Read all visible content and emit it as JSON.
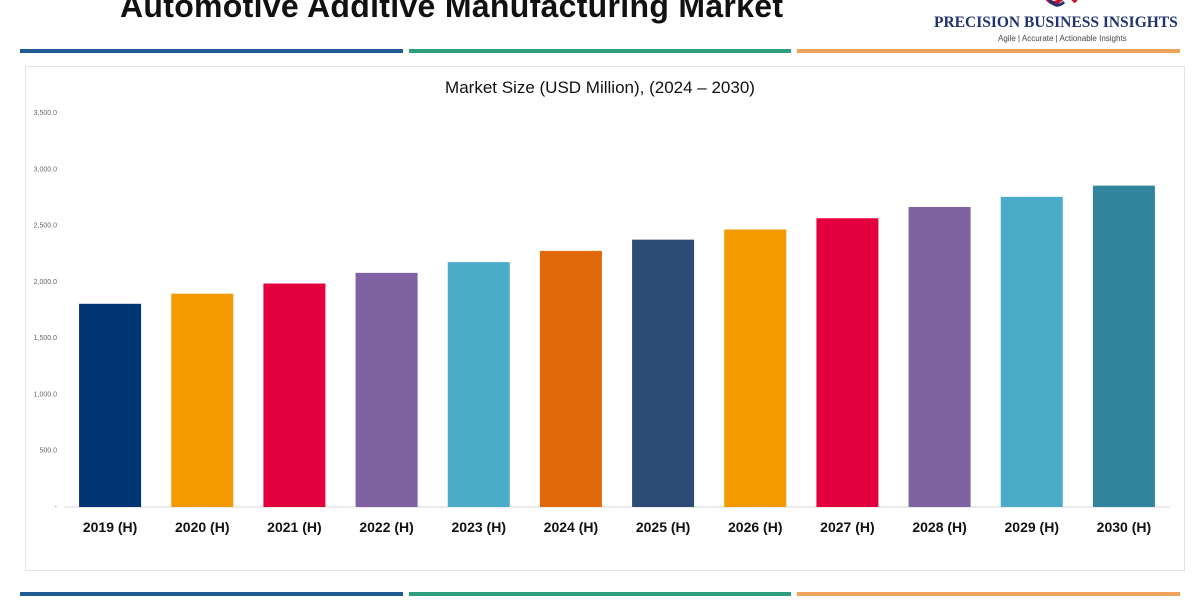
{
  "header": {
    "title": "Automotive Additive Manufacturing Market"
  },
  "logo": {
    "name": "PRECISION BUSINESS INSIGHTS",
    "tagline": "Agile | Accurate | Actionable Insights"
  },
  "colors": {
    "stripe": [
      "#1f5c93",
      "#2e9e7e",
      "#f0a35a"
    ]
  },
  "chart_data": {
    "type": "bar",
    "title": "Market Size (USD Million), (2024 – 2030)",
    "xlabel": "",
    "ylabel": "",
    "ylim": [
      0,
      3500
    ],
    "yticks": [
      "-",
      "500.0",
      "1,000.0",
      "1,500.0",
      "2,000.0",
      "2,500.0",
      "3,000.0",
      "3,500.0"
    ],
    "grid": false,
    "categories": [
      "2019 (H)",
      "2020 (H)",
      "2021 (H)",
      "2022 (H)",
      "2023 (H)",
      "2024 (H)",
      "2025 (H)",
      "2026 (H)",
      "2027 (H)",
      "2028 (H)",
      "2029 (H)",
      "2030 (H)"
    ],
    "values": [
      1805,
      1895,
      1985,
      2080,
      2175,
      2275,
      2375,
      2465,
      2565,
      2665,
      2755,
      2855
    ],
    "colors": [
      "#003473",
      "#f29a00",
      "#e4003f",
      "#7f62a1",
      "#4aacc6",
      "#e2680a",
      "#2c4b75",
      "#f29a00",
      "#e4003f",
      "#7f62a1",
      "#4aacc6",
      "#31849b"
    ]
  }
}
